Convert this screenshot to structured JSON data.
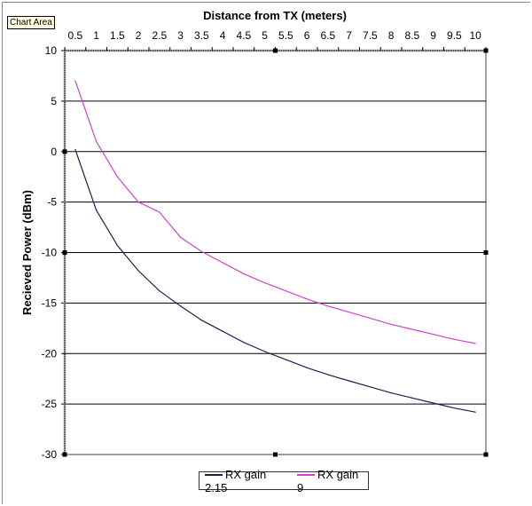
{
  "chart_data": {
    "type": "line",
    "title": "Distance from TX (meters)",
    "xlabel": "",
    "ylabel": "Recieved Power (dBm)",
    "categories": [
      "0.5",
      "1",
      "1.5",
      "2",
      "2.5",
      "3",
      "3.5",
      "4",
      "4.5",
      "5",
      "5.5",
      "6",
      "6.5",
      "7",
      "7.5",
      "8",
      "8.5",
      "9",
      "9.5",
      "10"
    ],
    "ylim": [
      -30,
      10
    ],
    "yticks": [
      10,
      5,
      0,
      -5,
      -10,
      -15,
      -20,
      -25,
      -30
    ],
    "grid": true,
    "legend": "bottom",
    "series": [
      {
        "name": "RX gain 2.15",
        "color": "#1f1f4f",
        "values": [
          0.2,
          -5.8,
          -9.3,
          -11.8,
          -13.8,
          -15.3,
          -16.7,
          -17.8,
          -18.9,
          -19.8,
          -20.6,
          -21.4,
          -22.1,
          -22.7,
          -23.3,
          -23.9,
          -24.4,
          -24.9,
          -25.4,
          -25.8
        ]
      },
      {
        "name": "RX gain 9",
        "color": "#cc44cc",
        "values": [
          7.0,
          1.0,
          -2.5,
          -5.0,
          -6.0,
          -8.5,
          -9.9,
          -11.0,
          -12.1,
          -13.0,
          -13.8,
          -14.6,
          -15.3,
          -15.9,
          -16.5,
          -17.1,
          -17.6,
          -18.1,
          -18.6,
          -19.0
        ]
      }
    ]
  },
  "tooltip": "Chart Area"
}
